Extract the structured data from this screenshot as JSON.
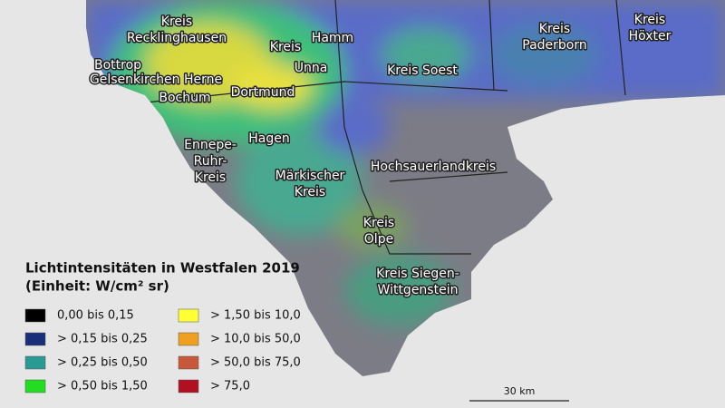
{
  "map": {
    "labels": [
      {
        "lines": [
          "Kreis",
          "Recklinghausen"
        ]
      },
      {
        "lines": [
          "Bottrop"
        ]
      },
      {
        "lines": [
          "Gelsenkirchen Herne"
        ]
      },
      {
        "lines": [
          "Bochum"
        ]
      },
      {
        "lines": [
          "Kreis"
        ]
      },
      {
        "lines": [
          "Hamm"
        ]
      },
      {
        "lines": [
          "Unna"
        ]
      },
      {
        "lines": [
          "Dortmund"
        ]
      },
      {
        "lines": [
          "Hagen"
        ]
      },
      {
        "lines": [
          "Ennepe-",
          "Ruhr-",
          "Kreis"
        ]
      },
      {
        "lines": [
          "Märkischer",
          "Kreis"
        ]
      },
      {
        "lines": [
          "Kreis Soest"
        ]
      },
      {
        "lines": [
          "Kreis",
          "Paderborn"
        ]
      },
      {
        "lines": [
          "Kreis",
          "Höxter"
        ]
      },
      {
        "lines": [
          "Hochsauerlandkreis"
        ]
      },
      {
        "lines": [
          "Kreis",
          "Olpe"
        ]
      },
      {
        "lines": [
          "Kreis Siegen-",
          "Wittgenstein"
        ]
      }
    ],
    "legend": {
      "title": "Lichtintensitäten in Westfalen 2019",
      "subtitle": "(Einheit: W/cm² sr)",
      "items": [
        {
          "label": "0,00 bis 0,15",
          "color": "#000000"
        },
        {
          "label": "> 0,15 bis 0,25",
          "color": "#1a2f7a"
        },
        {
          "label": "> 0,25 bis 0,50",
          "color": "#2a9a94"
        },
        {
          "label": "> 0,50 bis 1,50",
          "color": "#22dd22"
        },
        {
          "label": "> 1,50 bis 10,0",
          "color": "#ffff33"
        },
        {
          "label": "> 10,0 bis 50,0",
          "color": "#f0a020"
        },
        {
          "label": "> 50,0 bis 75,0",
          "color": "#c8583a"
        },
        {
          "label": "> 75,0",
          "color": "#b01020"
        }
      ]
    },
    "scale_bar": "30 km"
  }
}
